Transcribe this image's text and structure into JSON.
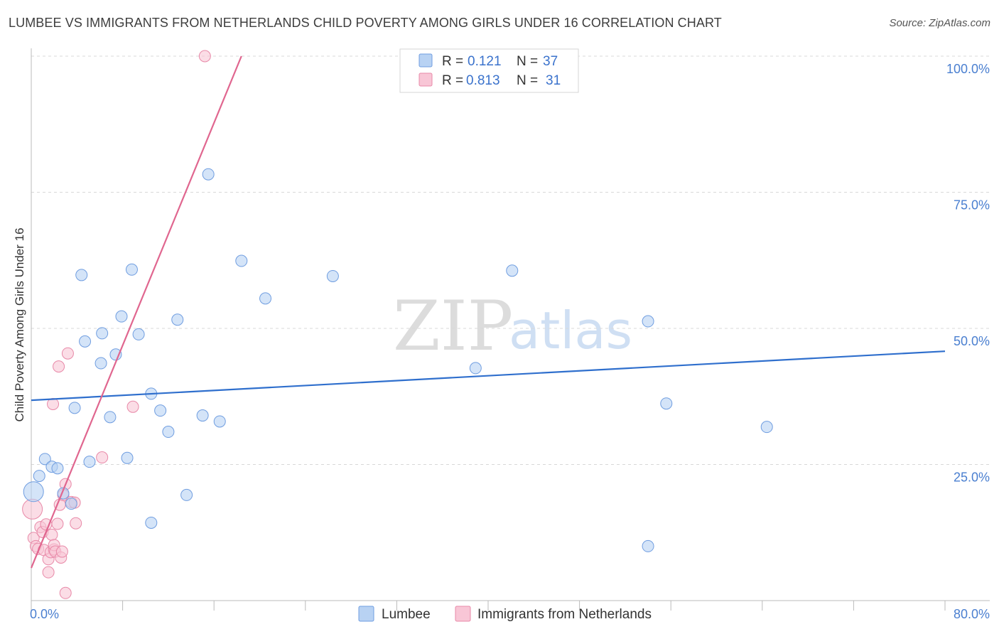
{
  "title": "LUMBEE VS IMMIGRANTS FROM NETHERLANDS CHILD POVERTY AMONG GIRLS UNDER 16 CORRELATION CHART",
  "source": "Source: ZipAtlas.com",
  "watermark": {
    "zip": "ZIP",
    "atlas": "atlas"
  },
  "chart_data": {
    "type": "scatter",
    "title": "LUMBEE VS IMMIGRANTS FROM NETHERLANDS CHILD POVERTY AMONG GIRLS UNDER 16 CORRELATION CHART",
    "xlabel": "",
    "ylabel": "Child Poverty Among Girls Under 16",
    "xlim": [
      0,
      80
    ],
    "ylim": [
      0,
      100
    ],
    "x_ticks": [
      {
        "value": 0,
        "label": "0.0%"
      },
      {
        "value": 80,
        "label": "80.0%"
      }
    ],
    "y_ticks": [
      {
        "value": 25,
        "label": "25.0%"
      },
      {
        "value": 50,
        "label": "50.0%"
      },
      {
        "value": 75,
        "label": "75.0%"
      },
      {
        "value": 100,
        "label": "100.0%"
      }
    ],
    "legend": [
      {
        "name": "Lumbee",
        "r_label": "R =",
        "r": "0.121",
        "n_label": "N =",
        "n": "37"
      },
      {
        "name": "Immigrants from Netherlands",
        "r_label": "R =",
        "r": "0.813",
        "n_label": "N =",
        "n": "31"
      }
    ],
    "colors": {
      "lumbee_fill": "#b8d2f3",
      "lumbee_stroke": "#6f9de0",
      "lumbee_line": "#2f6fcd",
      "nl_fill": "#f8c6d6",
      "nl_stroke": "#e889a8",
      "nl_line": "#e0668f",
      "grid": "#d8d8d8",
      "axis": "#bbbbbb"
    },
    "series": [
      {
        "name": "Lumbee",
        "trend": {
          "x": [
            0,
            80
          ],
          "y": [
            36.8,
            45.8
          ]
        },
        "points": [
          [
            0.2,
            20.0
          ],
          [
            0.7,
            22.9
          ],
          [
            1.2,
            26.0
          ],
          [
            1.8,
            24.6
          ],
          [
            2.3,
            24.3
          ],
          [
            2.8,
            19.7
          ],
          [
            3.5,
            17.8
          ],
          [
            3.8,
            35.4
          ],
          [
            4.4,
            59.8
          ],
          [
            4.7,
            47.6
          ],
          [
            5.1,
            25.5
          ],
          [
            6.1,
            43.6
          ],
          [
            6.2,
            49.1
          ],
          [
            6.9,
            33.7
          ],
          [
            7.4,
            45.2
          ],
          [
            7.9,
            52.2
          ],
          [
            8.4,
            26.2
          ],
          [
            8.8,
            60.8
          ],
          [
            9.4,
            48.9
          ],
          [
            10.5,
            14.3
          ],
          [
            10.5,
            38.0
          ],
          [
            11.3,
            34.9
          ],
          [
            12.0,
            31.0
          ],
          [
            12.8,
            51.6
          ],
          [
            13.6,
            19.4
          ],
          [
            15.0,
            34.0
          ],
          [
            15.5,
            78.3
          ],
          [
            16.5,
            32.9
          ],
          [
            18.4,
            62.4
          ],
          [
            20.5,
            55.5
          ],
          [
            26.4,
            59.6
          ],
          [
            38.9,
            42.7
          ],
          [
            42.1,
            60.6
          ],
          [
            54.0,
            51.3
          ],
          [
            54.0,
            10.0
          ],
          [
            55.6,
            36.2
          ],
          [
            64.4,
            31.9
          ]
        ]
      },
      {
        "name": "Immigrants from Netherlands",
        "trend": {
          "x": [
            0,
            18.4
          ],
          "y": [
            6.0,
            100.0
          ]
        },
        "points": [
          [
            0.1,
            16.8
          ],
          [
            0.2,
            11.5
          ],
          [
            0.4,
            10.0
          ],
          [
            0.6,
            9.5
          ],
          [
            0.8,
            13.5
          ],
          [
            1.0,
            12.6
          ],
          [
            1.1,
            9.3
          ],
          [
            1.3,
            14.0
          ],
          [
            1.5,
            7.6
          ],
          [
            1.5,
            5.2
          ],
          [
            1.7,
            8.9
          ],
          [
            1.8,
            12.1
          ],
          [
            1.9,
            36.1
          ],
          [
            2.0,
            9.4
          ],
          [
            2.0,
            10.2
          ],
          [
            2.1,
            9.0
          ],
          [
            2.3,
            14.1
          ],
          [
            2.4,
            43.0
          ],
          [
            2.5,
            17.6
          ],
          [
            2.6,
            7.9
          ],
          [
            2.7,
            9.0
          ],
          [
            2.8,
            19.4
          ],
          [
            3.0,
            21.4
          ],
          [
            3.0,
            1.4
          ],
          [
            3.2,
            45.4
          ],
          [
            3.5,
            18.1
          ],
          [
            3.8,
            18.0
          ],
          [
            3.9,
            14.2
          ],
          [
            6.2,
            26.3
          ],
          [
            8.9,
            35.6
          ],
          [
            15.2,
            100.0
          ]
        ]
      }
    ]
  }
}
